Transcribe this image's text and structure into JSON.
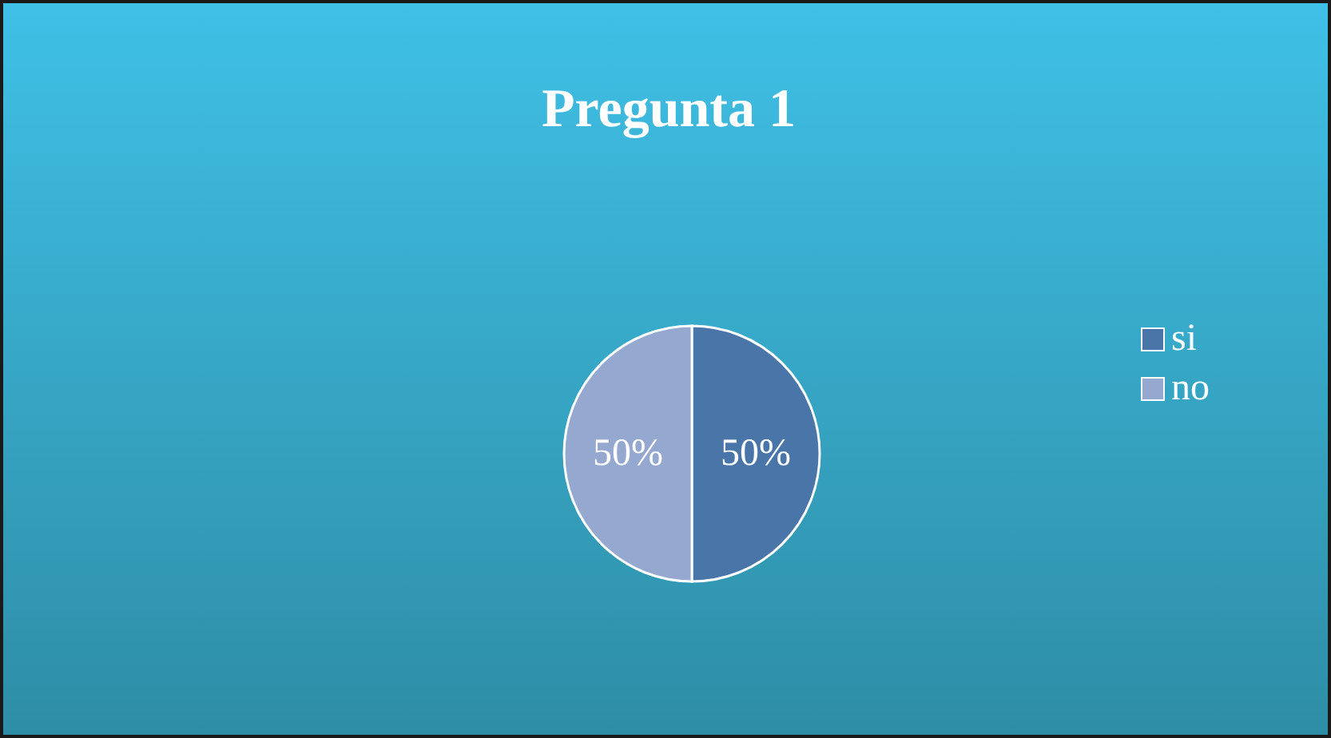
{
  "chart_data": {
    "type": "pie",
    "title": "Pregunta 1",
    "categories": [
      "si",
      "no"
    ],
    "values": [
      50,
      50
    ],
    "colors": [
      "#4a75a8",
      "#95a8d0"
    ],
    "value_labels": [
      "50%",
      "50%"
    ],
    "legend": "right"
  }
}
